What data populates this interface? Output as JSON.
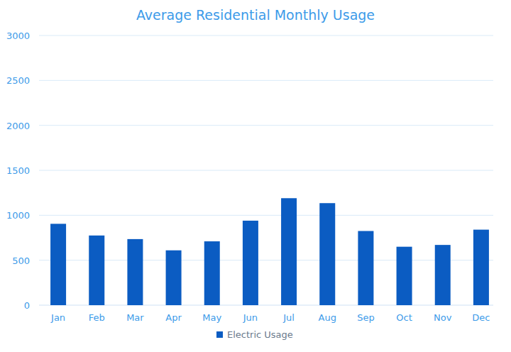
{
  "chart_data": {
    "type": "bar",
    "title": "Average Residential Monthly Usage",
    "categories": [
      "Jan",
      "Feb",
      "Mar",
      "Apr",
      "May",
      "Jun",
      "Jul",
      "Aug",
      "Sep",
      "Oct",
      "Nov",
      "Dec"
    ],
    "series": [
      {
        "name": "Electric Usage",
        "color": "#0b5cc2",
        "values": [
          905,
          775,
          735,
          610,
          710,
          940,
          1190,
          1135,
          825,
          650,
          670,
          840
        ]
      }
    ],
    "ylim": [
      0,
      3000
    ],
    "yticks": [
      0,
      500,
      1000,
      1500,
      2000,
      2500,
      3000
    ],
    "grid": true,
    "legend": "bottom"
  }
}
